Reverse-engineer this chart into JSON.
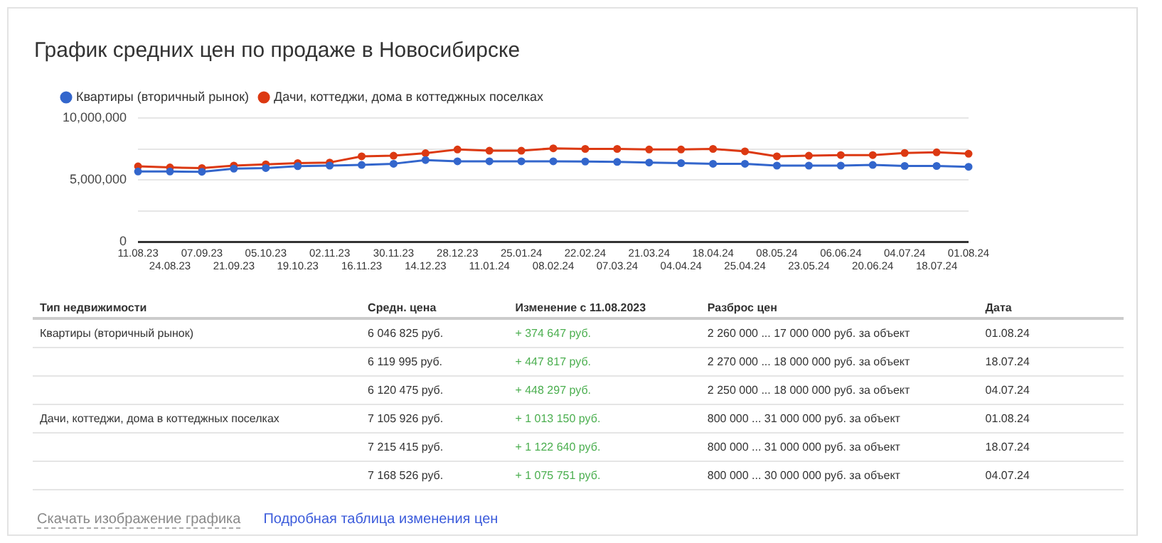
{
  "chart_data": {
    "type": "line",
    "title": "График средних цен по продаже в Новосибирске",
    "categories": [
      "11.08.23",
      "24.08.23",
      "07.09.23",
      "21.09.23",
      "05.10.23",
      "19.10.23",
      "02.11.23",
      "16.11.23",
      "30.11.23",
      "14.12.23",
      "28.12.23",
      "11.01.24",
      "25.01.24",
      "08.02.24",
      "22.02.24",
      "07.03.24",
      "21.03.24",
      "04.04.24",
      "18.04.24",
      "25.04.24",
      "08.05.24",
      "23.05.24",
      "06.06.24",
      "20.06.24",
      "04.07.24",
      "18.07.24",
      "01.08.24"
    ],
    "series": [
      {
        "name": "Квартиры (вторичный рынок)",
        "color": "#3366cc",
        "values": [
          5670000,
          5670000,
          5650000,
          5900000,
          5950000,
          6100000,
          6150000,
          6200000,
          6300000,
          6600000,
          6500000,
          6500000,
          6500000,
          6500000,
          6480000,
          6450000,
          6400000,
          6350000,
          6300000,
          6300000,
          6150000,
          6150000,
          6150000,
          6200000,
          6120000,
          6120000,
          6050000
        ]
      },
      {
        "name": "Дачи, коттеджи, дома в коттеджных поселках",
        "color": "#dc3912",
        "values": [
          6090000,
          6000000,
          5950000,
          6150000,
          6250000,
          6350000,
          6400000,
          6900000,
          6950000,
          7150000,
          7450000,
          7350000,
          7350000,
          7550000,
          7500000,
          7500000,
          7450000,
          7450000,
          7500000,
          7300000,
          6900000,
          6950000,
          7000000,
          7000000,
          7170000,
          7220000,
          7110000
        ]
      }
    ],
    "ylim": [
      0,
      10000000
    ],
    "yticks": [
      {
        "value": 0,
        "label": "0"
      },
      {
        "value": 2500000,
        "label": null
      },
      {
        "value": 5000000,
        "label": "5,000,000"
      },
      {
        "value": 7500000,
        "label": null
      },
      {
        "value": 10000000,
        "label": "10,000,000"
      }
    ],
    "grid": "y",
    "legend": "top",
    "marker": "circle",
    "line_style": "solid",
    "annotations": [
      "Тип недвижимости",
      "Средн. цена",
      "Изменение с 11.08.2023",
      "Разброс цен",
      "Дата",
      "Квартиры (вторичный рынок)",
      "6 046 825 руб.",
      "+ 374 647 руб.",
      "2 260 000 ... 17 000 000 руб. за объект",
      "01.08.24",
      "6 119 995 руб.",
      "+ 447 817 руб.",
      "2 270 000 ... 18 000 000 руб. за объект",
      "18.07.24",
      "6 120 475 руб.",
      "+ 448 297 руб.",
      "2 250 000 ... 18 000 000 руб. за объект",
      "04.07.24",
      "Дачи, коттеджи, дома в коттеджных поселках",
      "7 105 926 руб.",
      "+ 1 013 150 руб.",
      "800 000 ... 31 000 000 руб. за объект",
      "01.08.24",
      "7 215 415 руб.",
      "+ 1 122 640 руб.",
      "800 000 ... 31 000 000 руб. за объект",
      "18.07.24",
      "7 168 526 руб.",
      "+ 1 075 751 руб.",
      "800 000 ... 30 000 000 руб. за объект",
      "04.07.24",
      "Скачать изображение графика",
      "Подробная таблица изменения цен"
    ]
  }
}
